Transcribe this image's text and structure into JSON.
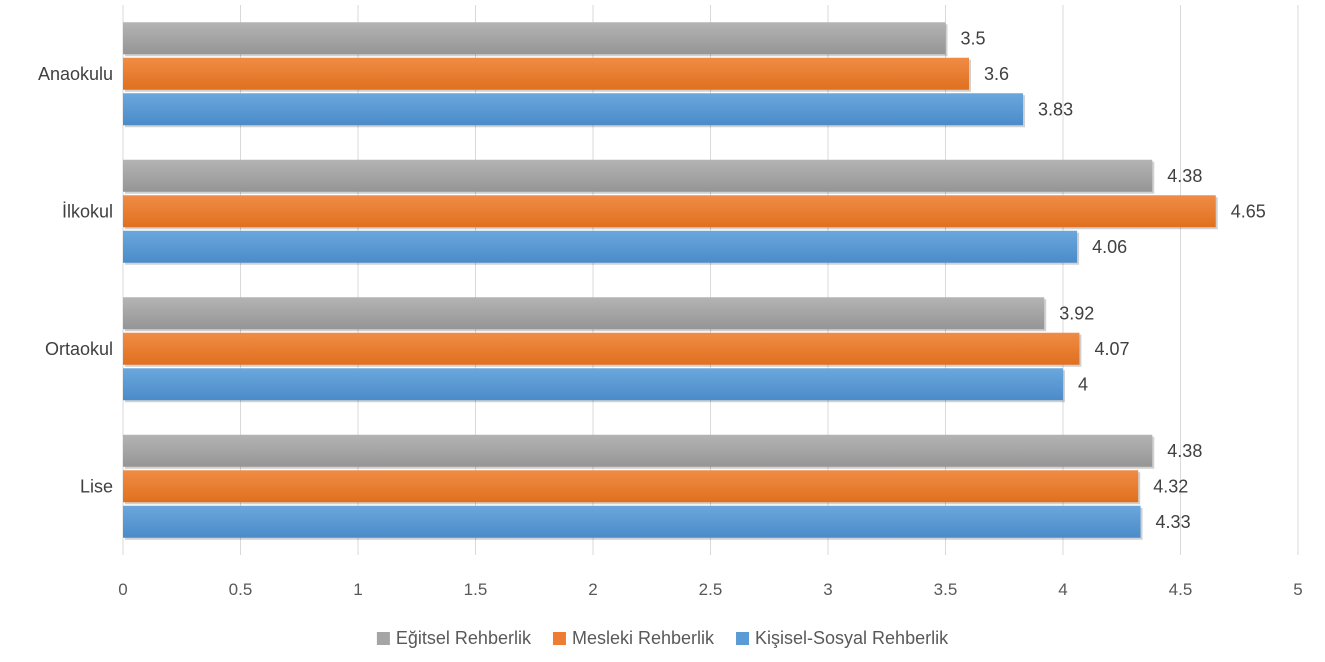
{
  "chart_data": {
    "type": "bar",
    "orientation": "horizontal",
    "title": "",
    "xlabel": "",
    "ylabel": "",
    "categories": [
      "Anaokulu",
      "İlkokul",
      "Ortaokul",
      "Lise"
    ],
    "series": [
      {
        "name": "Eğitsel Rehberlik",
        "color": "#A5A5A5",
        "values": [
          3.5,
          4.38,
          3.92,
          4.38
        ],
        "labels": [
          "3.5",
          "4.38",
          "3.92",
          "4.38"
        ]
      },
      {
        "name": "Mesleki Rehberlik",
        "color": "#ED7D31",
        "values": [
          3.6,
          4.65,
          4.07,
          4.32
        ],
        "labels": [
          "3.6",
          "4.65",
          "4.07",
          "4.32"
        ]
      },
      {
        "name": "Kişisel-Sosyal Rehberlik",
        "color": "#5B9BD5",
        "values": [
          3.83,
          4.06,
          4,
          4.33
        ],
        "labels": [
          "3.83",
          "4.06",
          "4",
          "4.33"
        ]
      }
    ],
    "xlim": [
      0,
      5
    ],
    "x_ticks": [
      0,
      0.5,
      1,
      1.5,
      2,
      2.5,
      3,
      3.5,
      4,
      4.5,
      5
    ],
    "x_tick_labels": [
      "0",
      "0.5",
      "1",
      "1.5",
      "2",
      "2.5",
      "3",
      "3.5",
      "4",
      "4.5",
      "5"
    ],
    "grid": "vertical",
    "legend_position": "bottom"
  }
}
